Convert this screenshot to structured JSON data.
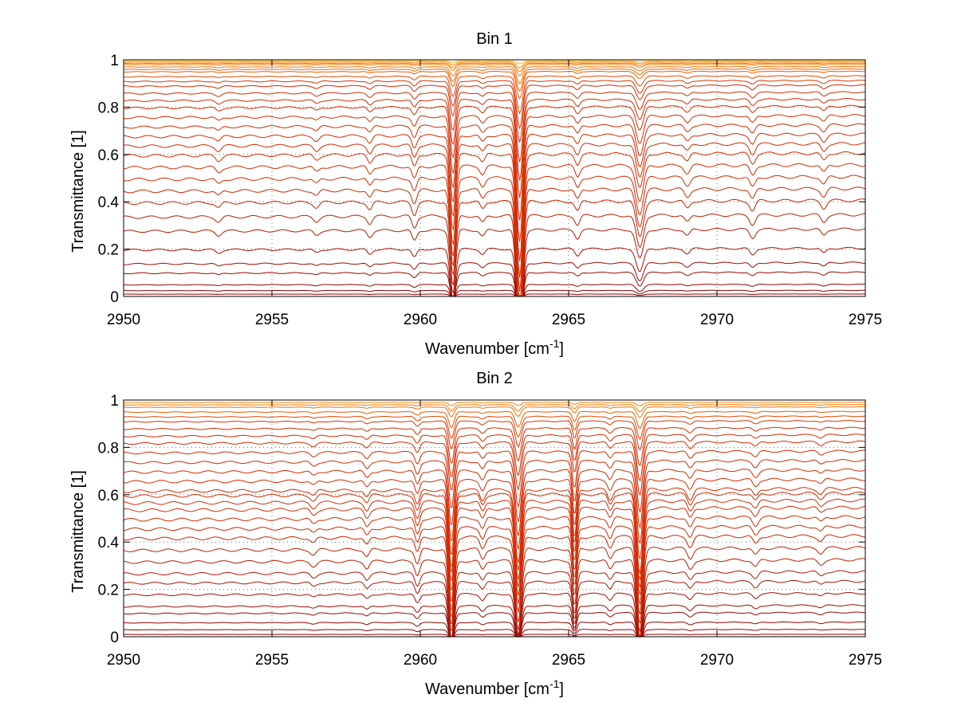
{
  "chart_data": [
    {
      "type": "line",
      "title": "Bin 1",
      "xlabel": "Wavenumber [cm",
      "xlabel_sup": "-1",
      "xlabel_end": "]",
      "ylabel": "Transmittance [1]",
      "xlim": [
        2950,
        2975
      ],
      "ylim": [
        0,
        1
      ],
      "xticks": [
        2950,
        2955,
        2960,
        2965,
        2970,
        2975
      ],
      "yticks": [
        0,
        0.2,
        0.4,
        0.6,
        0.8,
        1
      ],
      "xticklabels": [
        "2950",
        "2955",
        "2960",
        "2965",
        "2970",
        "2975"
      ],
      "yticklabels": [
        "0",
        "0.2",
        "0.4",
        "0.6",
        "0.8",
        "1"
      ],
      "grid": true,
      "series_baselines": [
        0.0,
        0.01,
        0.025,
        0.05,
        0.1,
        0.14,
        0.2,
        0.28,
        0.34,
        0.4,
        0.45,
        0.5,
        0.55,
        0.6,
        0.64,
        0.68,
        0.72,
        0.76,
        0.8,
        0.83,
        0.86,
        0.89,
        0.91,
        0.93,
        0.95,
        0.96,
        0.97,
        0.98,
        0.985,
        0.99,
        0.995,
        1.0
      ],
      "absorption_lines": [
        {
          "center": 2961.1,
          "depth": 0.3,
          "width": 0.09
        },
        {
          "center": 2963.35,
          "depth": 0.55,
          "width": 0.1
        },
        {
          "center": 2967.4,
          "depth": 0.14,
          "width": 0.12
        },
        {
          "center": 2959.8,
          "depth": 0.05,
          "width": 0.08
        },
        {
          "center": 2965.3,
          "depth": 0.04,
          "width": 0.08
        },
        {
          "center": 2962.1,
          "depth": 0.03,
          "width": 0.08
        },
        {
          "center": 2958.3,
          "depth": 0.03,
          "width": 0.08
        },
        {
          "center": 2971.2,
          "depth": 0.04,
          "width": 0.09
        },
        {
          "center": 2969.0,
          "depth": 0.03,
          "width": 0.09
        },
        {
          "center": 2956.5,
          "depth": 0.02,
          "width": 0.09
        },
        {
          "center": 2953.2,
          "depth": 0.02,
          "width": 0.09
        },
        {
          "center": 2973.6,
          "depth": 0.03,
          "width": 0.09
        }
      ],
      "colors": {
        "deep": "#8b0000",
        "mid": "#d42a00",
        "light": "#ff8c00",
        "top": "#ffb400",
        "axis": "#000000"
      }
    },
    {
      "type": "line",
      "title": "Bin 2",
      "xlabel": "Wavenumber [cm",
      "xlabel_sup": "-1",
      "xlabel_end": "]",
      "ylabel": "Transmittance [1]",
      "xlim": [
        2950,
        2975
      ],
      "ylim": [
        0,
        1
      ],
      "xticks": [
        2950,
        2955,
        2960,
        2965,
        2970,
        2975
      ],
      "yticks": [
        0,
        0.2,
        0.4,
        0.6,
        0.8,
        1
      ],
      "xticklabels": [
        "2950",
        "2955",
        "2960",
        "2965",
        "2970",
        "2975"
      ],
      "yticklabels": [
        "0",
        "0.2",
        "0.4",
        "0.6",
        "0.8",
        "1"
      ],
      "grid": true,
      "series_baselines": [
        0.0,
        0.01,
        0.03,
        0.06,
        0.1,
        0.13,
        0.18,
        0.23,
        0.27,
        0.32,
        0.37,
        0.42,
        0.46,
        0.5,
        0.54,
        0.57,
        0.6,
        0.62,
        0.66,
        0.7,
        0.74,
        0.78,
        0.82,
        0.85,
        0.88,
        0.91,
        0.93,
        0.95,
        0.97,
        0.98,
        0.99,
        1.0
      ],
      "absorption_lines": [
        {
          "center": 2961.05,
          "depth": 0.32,
          "width": 0.09
        },
        {
          "center": 2963.3,
          "depth": 0.3,
          "width": 0.1
        },
        {
          "center": 2965.2,
          "depth": 0.2,
          "width": 0.07
        },
        {
          "center": 2967.4,
          "depth": 0.34,
          "width": 0.1
        },
        {
          "center": 2959.9,
          "depth": 0.06,
          "width": 0.08
        },
        {
          "center": 2962.1,
          "depth": 0.04,
          "width": 0.08
        },
        {
          "center": 2966.4,
          "depth": 0.04,
          "width": 0.08
        },
        {
          "center": 2958.2,
          "depth": 0.03,
          "width": 0.08
        },
        {
          "center": 2969.1,
          "depth": 0.04,
          "width": 0.09
        },
        {
          "center": 2971.3,
          "depth": 0.03,
          "width": 0.09
        },
        {
          "center": 2956.4,
          "depth": 0.02,
          "width": 0.09
        },
        {
          "center": 2973.5,
          "depth": 0.02,
          "width": 0.09
        }
      ],
      "colors": {
        "deep": "#8b0000",
        "mid": "#d42a00",
        "light": "#ff8c00",
        "top": "#1a5cff",
        "axis": "#000000"
      }
    }
  ]
}
